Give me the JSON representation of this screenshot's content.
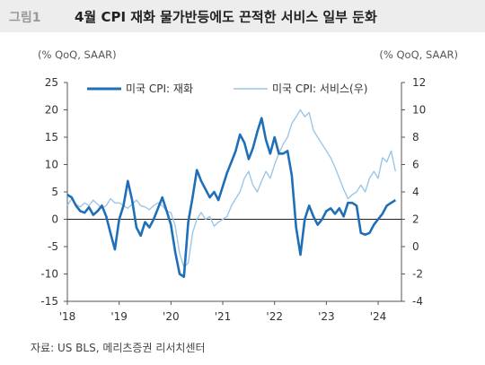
{
  "header": {
    "figure_label": "그림1",
    "title": "4월 CPI 재화 물가반등에도 끈적한 서비스 일부 둔화"
  },
  "units": {
    "left": "(% QoQ, SAAR)",
    "right": "(% QoQ, SAAR)"
  },
  "source": "자료: US BLS, 메리츠증권 리서치센터",
  "colors": {
    "goods": "#1f6fb8",
    "services": "#9cc6e6"
  },
  "chart_data": {
    "type": "line",
    "left_axis": {
      "min": -15,
      "max": 25,
      "ticks": [
        25,
        20,
        15,
        10,
        5,
        0,
        -5,
        -10,
        -15
      ]
    },
    "right_axis": {
      "min": -4,
      "max": 12,
      "ticks": [
        12,
        10,
        8,
        6,
        4,
        2,
        0,
        -2,
        -4
      ]
    },
    "x_axis": {
      "min": 2018.0,
      "max": 2024.45,
      "ticks": [
        "'18",
        "'19",
        "'20",
        "'21",
        "'22",
        "'23",
        "'24"
      ],
      "tick_years": [
        2018,
        2019,
        2020,
        2021,
        2022,
        2023,
        2024
      ]
    },
    "legend": {
      "placement": "top-left"
    },
    "series": [
      {
        "name": "미국 CPI: 재화",
        "axis": "left",
        "x": [
          2018.0,
          2018.083,
          2018.167,
          2018.25,
          2018.333,
          2018.417,
          2018.5,
          2018.583,
          2018.667,
          2018.75,
          2018.833,
          2018.917,
          2019.0,
          2019.083,
          2019.167,
          2019.25,
          2019.333,
          2019.417,
          2019.5,
          2019.583,
          2019.667,
          2019.75,
          2019.833,
          2019.917,
          2020.0,
          2020.083,
          2020.167,
          2020.25,
          2020.333,
          2020.417,
          2020.5,
          2020.583,
          2020.667,
          2020.75,
          2020.833,
          2020.917,
          2021.0,
          2021.083,
          2021.167,
          2021.25,
          2021.333,
          2021.417,
          2021.5,
          2021.583,
          2021.667,
          2021.75,
          2021.833,
          2021.917,
          2022.0,
          2022.083,
          2022.167,
          2022.25,
          2022.333,
          2022.417,
          2022.5,
          2022.583,
          2022.667,
          2022.75,
          2022.833,
          2022.917,
          2023.0,
          2023.083,
          2023.167,
          2023.25,
          2023.333,
          2023.417,
          2023.5,
          2023.583,
          2023.667,
          2023.75,
          2023.833,
          2023.917,
          2024.0,
          2024.083,
          2024.167,
          2024.25,
          2024.333
        ],
        "values": [
          4.5,
          4.0,
          2.5,
          1.5,
          1.2,
          2.2,
          0.8,
          1.5,
          2.5,
          0.5,
          -2.5,
          -5.5,
          0.0,
          2.5,
          7.0,
          3.5,
          -1.5,
          -3.0,
          -0.5,
          -1.5,
          0.0,
          2.0,
          4.0,
          1.5,
          -1.0,
          -6.0,
          -10.0,
          -10.5,
          -0.5,
          4.0,
          9.0,
          7.0,
          5.5,
          4.0,
          5.0,
          3.5,
          6.0,
          8.5,
          10.5,
          12.5,
          15.5,
          14.0,
          11.0,
          13.0,
          16.0,
          18.5,
          14.5,
          12.0,
          15.0,
          12.0,
          12.0,
          12.5,
          8.0,
          -1.5,
          -6.5,
          0.0,
          2.5,
          0.5,
          -1.0,
          0.0,
          1.5,
          2.0,
          1.0,
          2.0,
          0.5,
          3.0,
          3.0,
          2.5,
          -2.5,
          -2.8,
          -2.5,
          -1.0,
          0.0,
          1.0,
          2.5,
          3.0,
          3.5
        ]
      },
      {
        "name": "미국 CPI: 서비스(우)",
        "axis": "right",
        "x": [
          2018.0,
          2018.083,
          2018.167,
          2018.25,
          2018.333,
          2018.417,
          2018.5,
          2018.583,
          2018.667,
          2018.75,
          2018.833,
          2018.917,
          2019.0,
          2019.083,
          2019.167,
          2019.25,
          2019.333,
          2019.417,
          2019.5,
          2019.583,
          2019.667,
          2019.75,
          2019.833,
          2019.917,
          2020.0,
          2020.083,
          2020.167,
          2020.25,
          2020.333,
          2020.417,
          2020.5,
          2020.583,
          2020.667,
          2020.75,
          2020.833,
          2020.917,
          2021.0,
          2021.083,
          2021.167,
          2021.25,
          2021.333,
          2021.417,
          2021.5,
          2021.583,
          2021.667,
          2021.75,
          2021.833,
          2021.917,
          2022.0,
          2022.083,
          2022.167,
          2022.25,
          2022.333,
          2022.417,
          2022.5,
          2022.583,
          2022.667,
          2022.75,
          2022.833,
          2022.917,
          2023.0,
          2023.083,
          2023.167,
          2023.25,
          2023.333,
          2023.417,
          2023.5,
          2023.583,
          2023.667,
          2023.75,
          2023.833,
          2023.917,
          2024.0,
          2024.083,
          2024.167,
          2024.25,
          2024.333
        ],
        "values": [
          3.0,
          3.5,
          3.1,
          2.9,
          3.2,
          3.0,
          3.4,
          3.1,
          2.8,
          3.0,
          3.5,
          3.2,
          3.2,
          3.0,
          2.8,
          3.1,
          3.4,
          3.0,
          2.9,
          2.7,
          3.0,
          3.2,
          3.0,
          2.6,
          2.5,
          1.5,
          -0.5,
          -1.5,
          -1.2,
          1.0,
          2.0,
          2.5,
          2.0,
          2.2,
          1.5,
          1.8,
          2.0,
          2.2,
          3.0,
          3.5,
          4.0,
          5.0,
          5.5,
          4.5,
          4.0,
          4.8,
          5.5,
          5.0,
          6.0,
          6.8,
          7.5,
          8.0,
          9.0,
          9.5,
          10.0,
          9.5,
          9.8,
          8.5,
          8.0,
          7.5,
          7.0,
          6.5,
          5.8,
          5.0,
          4.2,
          3.5,
          3.8,
          4.0,
          4.5,
          4.0,
          5.0,
          5.5,
          5.0,
          6.5,
          6.2,
          7.0,
          5.5
        ]
      }
    ]
  }
}
